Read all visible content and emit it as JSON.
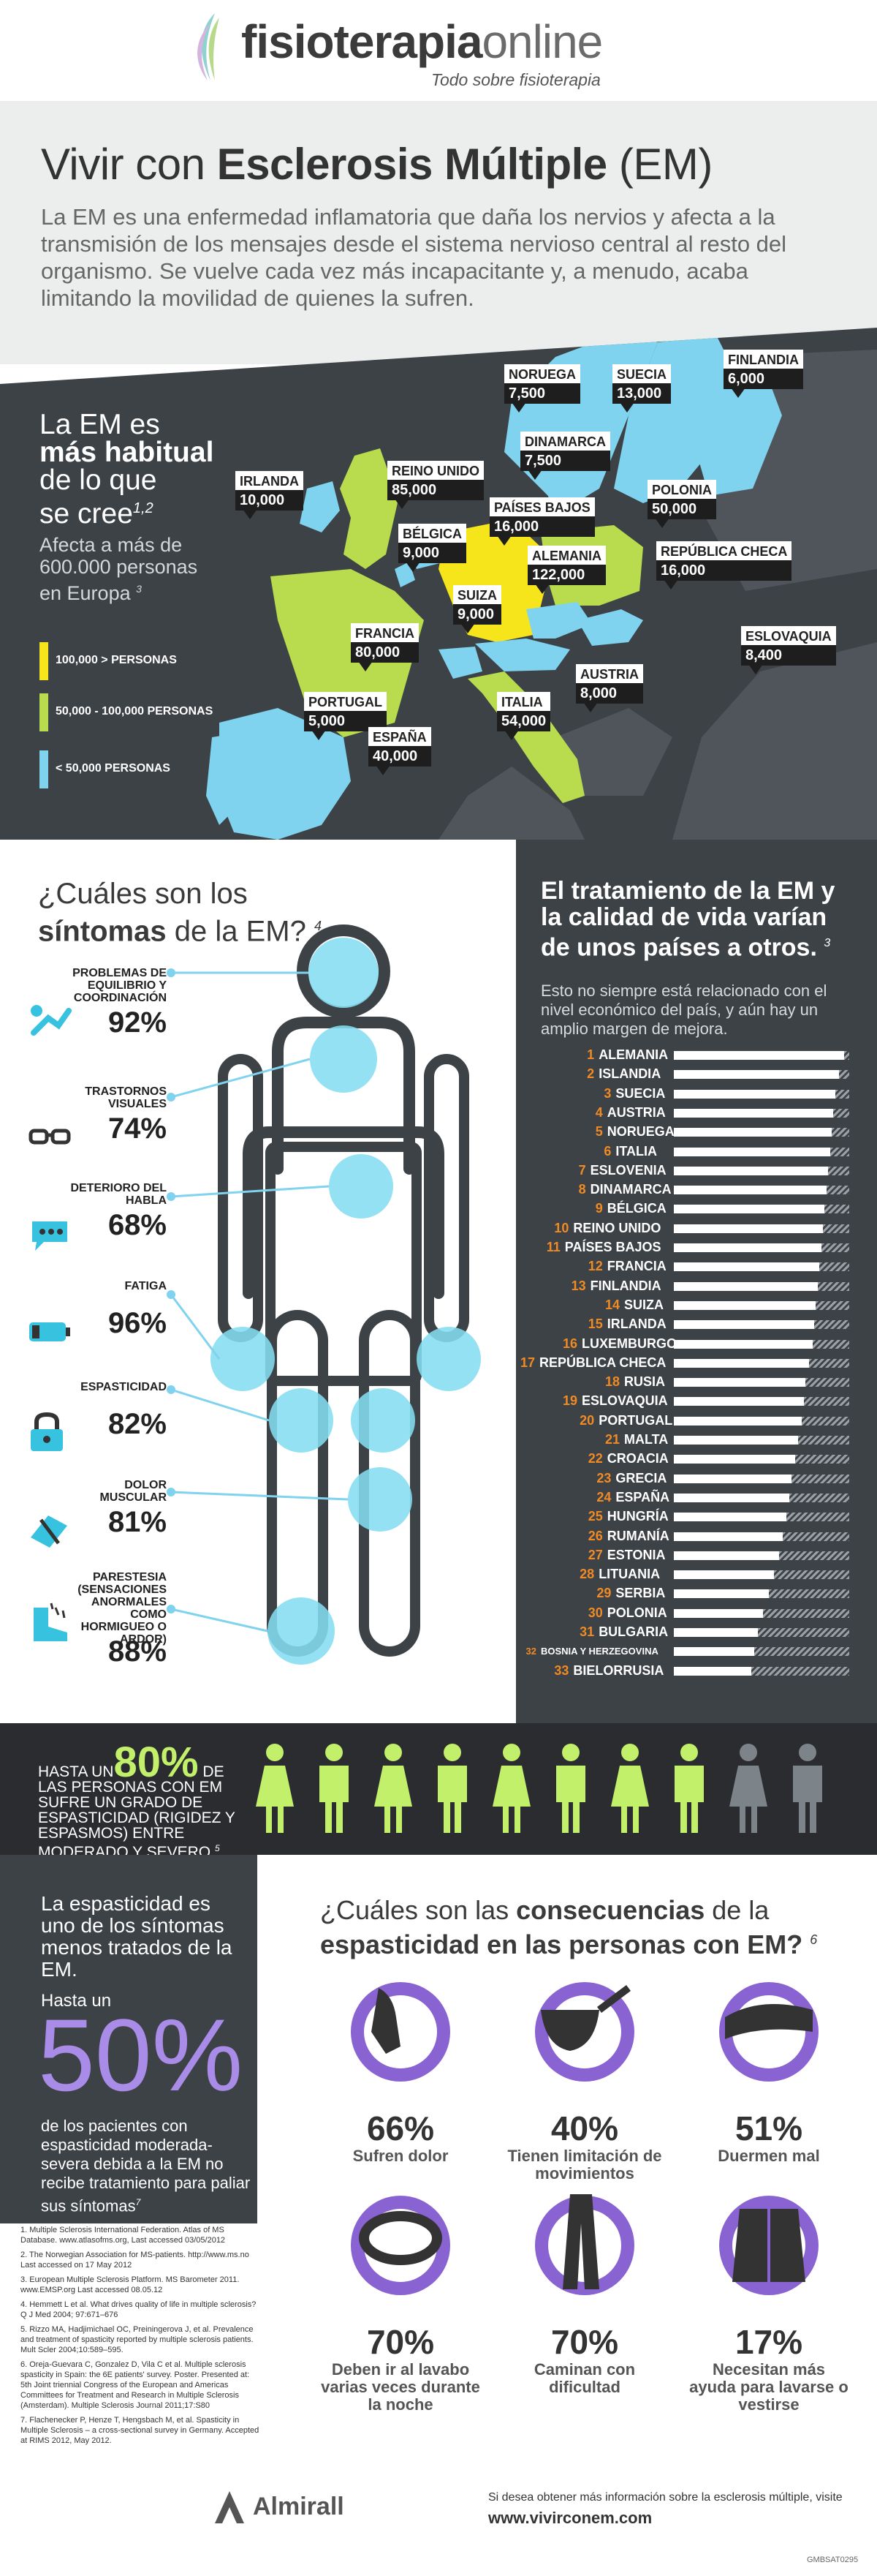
{
  "header": {
    "logo_bold": "fisioterapia",
    "logo_light": "online",
    "tagline": "Todo sobre fisioterapia"
  },
  "intro": {
    "title_a": "Vivir con ",
    "title_b": "Esclerosis Múltiple",
    "title_c": " (EM)",
    "text": "La EM es una enfermedad inflamatoria que daña los nervios y afecta a la transmisión de los mensajes desde el sistema nervioso central al resto del organismo. Se vuelve cada vez más incapacitante y, a menudo, acaba limitando la movilidad de quienes la sufren."
  },
  "map": {
    "headline_a": "La EM es",
    "headline_b": "más habitual",
    "headline_c": "de lo que",
    "headline_d": "se  cree",
    "headline_ref": "1,2",
    "affect": "Afecta a más de 600.000 personas en Europa",
    "affect_ref": "3",
    "legend": [
      {
        "label": "100,000 > PERSONAS",
        "color": "#f6e51a"
      },
      {
        "label": "50,000 - 100,000 PERSONAS",
        "color": "#b8dc4d"
      },
      {
        "label": "< 50,000 PERSONAS",
        "color": "#7fd3ee"
      }
    ],
    "countries": [
      {
        "name": "NORUEGA",
        "value": "7,500"
      },
      {
        "name": "SUECIA",
        "value": "13,000"
      },
      {
        "name": "FINLANDIA",
        "value": "6,000"
      },
      {
        "name": "DINAMARCA",
        "value": "7,500"
      },
      {
        "name": "IRLANDA",
        "value": "10,000"
      },
      {
        "name": "REINO UNIDO",
        "value": "85,000"
      },
      {
        "name": "PAÍSES BAJOS",
        "value": "16,000"
      },
      {
        "name": "POLONIA",
        "value": "50,000"
      },
      {
        "name": "BÉLGICA",
        "value": "9,000"
      },
      {
        "name": "ALEMANIA",
        "value": "122,000"
      },
      {
        "name": "REPÚBLICA CHECA",
        "value": "16,000"
      },
      {
        "name": "SUIZA",
        "value": "9,000"
      },
      {
        "name": "FRANCIA",
        "value": "80,000"
      },
      {
        "name": "ESLOVAQUIA",
        "value": "8,400"
      },
      {
        "name": "AUSTRIA",
        "value": "8,000"
      },
      {
        "name": "PORTUGAL",
        "value": "5,000"
      },
      {
        "name": "ITALIA",
        "value": "54,000"
      },
      {
        "name": "ESPAÑA",
        "value": "40,000"
      }
    ]
  },
  "symptoms": {
    "title_a": "¿Cuáles son los",
    "title_b": "síntomas",
    "title_c": " de la EM?",
    "title_ref": "4",
    "items": [
      {
        "name": "PROBLEMAS DE EQUILIBRIO Y COORDINACIÓN",
        "pct": "92%",
        "icon": "fall-icon"
      },
      {
        "name": "TRASTORNOS VISUALES",
        "pct": "74%",
        "icon": "glasses-icon"
      },
      {
        "name": "DETERIORO DEL HABLA",
        "pct": "68%",
        "icon": "speech-icon"
      },
      {
        "name": "FATIGA",
        "pct": "96%",
        "icon": "battery-icon"
      },
      {
        "name": "ESPASTICIDAD",
        "pct": "82%",
        "icon": "padlock-hand-icon"
      },
      {
        "name": "DOLOR MUSCULAR",
        "pct": "81%",
        "icon": "bandaged-hand-icon"
      },
      {
        "name": "PARESTESIA (SENSACIONES ANORMALES COMO HORMIGUEO O ARDOR)",
        "pct": "88%",
        "icon": "tingling-foot-icon"
      }
    ]
  },
  "treatment": {
    "title": "El tratamiento de la EM y la calidad de vida varían de unos países a otros.",
    "title_ref": "3",
    "subtitle": "Esto no siempre está relacionado con el nivel económico del país, y aún hay un amplio margen de mejora.",
    "ranking": [
      {
        "rank": "1",
        "country": "ALEMANIA",
        "score": 0.97
      },
      {
        "rank": "2",
        "country": "ISLANDIA",
        "score": 0.94
      },
      {
        "rank": "3",
        "country": "SUECIA",
        "score": 0.92
      },
      {
        "rank": "4",
        "country": "AUSTRIA",
        "score": 0.91
      },
      {
        "rank": "5",
        "country": "NORUEGA",
        "score": 0.9
      },
      {
        "rank": "6",
        "country": "ITALIA",
        "score": 0.89
      },
      {
        "rank": "7",
        "country": "ESLOVENIA",
        "score": 0.88
      },
      {
        "rank": "8",
        "country": "DINAMARCA",
        "score": 0.87
      },
      {
        "rank": "9",
        "country": "BÉLGICA",
        "score": 0.86
      },
      {
        "rank": "10",
        "country": "REINO UNIDO",
        "score": 0.85
      },
      {
        "rank": "11",
        "country": "PAÍSES BAJOS",
        "score": 0.84
      },
      {
        "rank": "12",
        "country": "FRANCIA",
        "score": 0.83
      },
      {
        "rank": "13",
        "country": "FINLANDIA",
        "score": 0.82
      },
      {
        "rank": "14",
        "country": "SUIZA",
        "score": 0.81
      },
      {
        "rank": "15",
        "country": "IRLANDA",
        "score": 0.8
      },
      {
        "rank": "16",
        "country": "LUXEMBURGO",
        "score": 0.79
      },
      {
        "rank": "17",
        "country": "REPÚBLICA CHECA",
        "score": 0.77
      },
      {
        "rank": "18",
        "country": "RUSIA",
        "score": 0.75
      },
      {
        "rank": "19",
        "country": "ESLOVAQUIA",
        "score": 0.74
      },
      {
        "rank": "20",
        "country": "PORTUGAL",
        "score": 0.73
      },
      {
        "rank": "21",
        "country": "MALTA",
        "score": 0.71
      },
      {
        "rank": "22",
        "country": "CROACIA",
        "score": 0.69
      },
      {
        "rank": "23",
        "country": "GRECIA",
        "score": 0.67
      },
      {
        "rank": "24",
        "country": "ESPAÑA",
        "score": 0.66
      },
      {
        "rank": "25",
        "country": "HUNGRÍA",
        "score": 0.64
      },
      {
        "rank": "26",
        "country": "RUMANÍA",
        "score": 0.62
      },
      {
        "rank": "27",
        "country": "ESTONIA",
        "score": 0.6
      },
      {
        "rank": "28",
        "country": "LITUANIA",
        "score": 0.57
      },
      {
        "rank": "29",
        "country": "SERBIA",
        "score": 0.54
      },
      {
        "rank": "30",
        "country": "POLONIA",
        "score": 0.51
      },
      {
        "rank": "31",
        "country": "BULGARIA",
        "score": 0.48
      },
      {
        "rank": "32",
        "country": "BOSNIA Y HERZEGOVINA",
        "score": 0.46
      },
      {
        "rank": "33",
        "country": "BIELORRUSIA",
        "score": 0.44
      }
    ]
  },
  "band": {
    "pre": "HASTA UN",
    "big": "80%",
    "post": " DE LAS PERSONAS CON EM SUFRE UN GRADO DE ESPASTICIDAD (RIGIDEZ Y ESPASMOS) ENTRE MODERADO  Y SEVERO",
    "ref": "5",
    "people_total": 10,
    "people_highlight": 8
  },
  "spasticity": {
    "text1": "La espasticidad es uno de los síntomas menos tratados de la EM.",
    "text2": "Hasta un",
    "big": "50%",
    "text3": "de los pacientes con espasticidad moderada-severa debida a la EM no recibe tratamiento para paliar sus síntomas",
    "ref": "7"
  },
  "consequences": {
    "title_a": "¿Cuáles son las ",
    "title_b": "consecuencias",
    "title_c": " de la ",
    "title_d": "espasticidad en las personas con EM?",
    "title_ref": "6",
    "items": [
      {
        "pct": "66%",
        "text": "Sufren dolor",
        "icon": "hand-pain-icon"
      },
      {
        "pct": "40%",
        "text": "Tienen limitación de movimientos",
        "icon": "spilled-cup-icon"
      },
      {
        "pct": "51%",
        "text": "Duermen mal",
        "icon": "pillow-icon"
      },
      {
        "pct": "70%",
        "text": "Deben ir al lavabo varias veces durante la noche",
        "icon": "toilet-icon"
      },
      {
        "pct": "70%",
        "text": "Caminan con dificultad",
        "icon": "legs-icon"
      },
      {
        "pct": "17%",
        "text": "Necesitan más ayuda para lavarse o vestirse",
        "icon": "dressing-icon"
      }
    ]
  },
  "references": [
    "1. Multiple Sclerosis International Federation. Atlas of MS Database. www.atlasofms.org, Last accessed 03/05/2012",
    "2. The Norwegian Association for MS-patients. http://www.ms.no Last accessed on 17 May 2012",
    "3. European Multiple Sclerosis Platform. MS Barometer 2011. www.EMSP.org Last accessed 08.05.12",
    "4. Hemmett L et al. What drives quality of life in multiple sclerosis? Q J Med 2004; 97:671–676",
    "5. Rizzo MA, Hadjimichael OC, Preiningerova J, et al. Prevalence and treatment of spasticity reported by multiple sclerosis patients. Mult Scler 2004;10:589–595.",
    "6. Oreja-Guevara C, Gonzalez D, Vila C et al. Multiple sclerosis spasticity in Spain: the 6E patients' survey. Poster. Presented at: 5th Joint triennial Congress of the European and Americas Committees for Treatment and Research in Multiple Sclerosis (Amsterdam). Multiple Sclerosis Journal 2011;17:S80",
    "7. Flachenecker P, Henze T, Hengsbach M, et al. Spasticity in Multiple Sclerosis – a cross-sectional survey in Germany. Accepted at RIMS 2012, May 2012."
  ],
  "footer": {
    "brand": "Almirall",
    "note": "Si desea obtener más información sobre la esclerosis múltiple, visite",
    "url": "www.vivirconem.com",
    "code": "GMBSAT0295"
  },
  "colors": {
    "dark": "#3d4247",
    "orange": "#f08a24",
    "lime": "#c3f06b",
    "purple": "#8a63d2",
    "cyan": "#8fe0f2"
  }
}
